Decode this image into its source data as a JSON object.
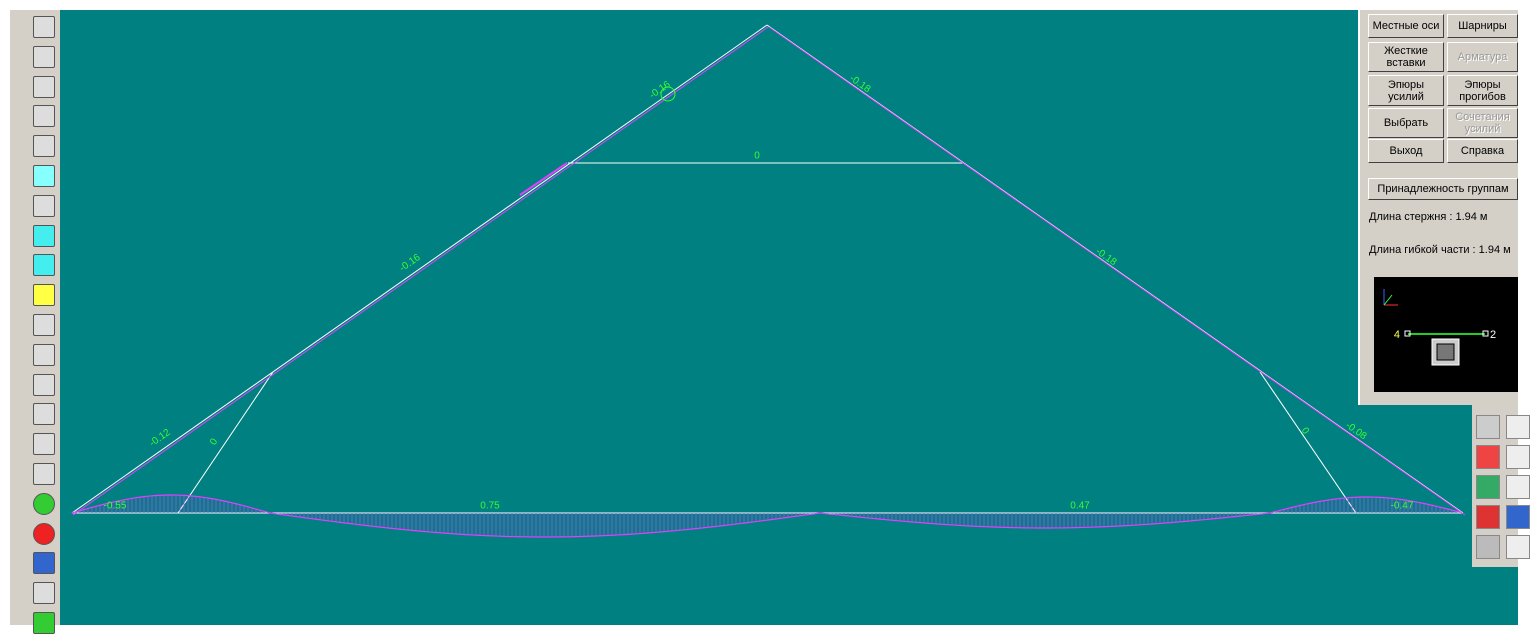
{
  "panel": {
    "buttons": [
      {
        "label": "Местные оси",
        "enabled": true
      },
      {
        "label": "Шарниры",
        "enabled": true
      },
      {
        "label": "Жесткие вставки",
        "enabled": true
      },
      {
        "label": "Арматура",
        "enabled": false
      },
      {
        "label": "Эпюры усилий",
        "enabled": true
      },
      {
        "label": "Эпюры прогибов",
        "enabled": true
      },
      {
        "label": "Выбрать",
        "enabled": true
      },
      {
        "label": "Сочетания усилий",
        "enabled": false
      },
      {
        "label": "Выход",
        "enabled": true
      },
      {
        "label": "Справка",
        "enabled": true
      }
    ],
    "group_button": "Принадлежность группам",
    "info": [
      "Длина стержня : 1.94 м",
      "Длина гибкой части : 1.94 м"
    ],
    "preview": {
      "node_start": "4",
      "node_end": "2"
    }
  },
  "canvas": {
    "labels": [
      "-0.16",
      "-0.18",
      "0",
      "-0.16",
      "-0.18",
      "-0.12",
      "0",
      "0",
      "-0.08",
      "-0.55",
      "0.75",
      "0.47",
      "-0.47"
    ]
  }
}
